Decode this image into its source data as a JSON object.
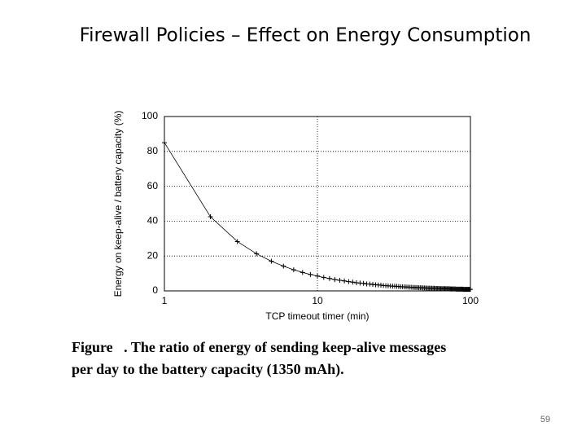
{
  "slide": {
    "title": "Firewall Policies – Effect on Energy Consumption",
    "caption": [
      "Figure   . The ratio of energy of sending keep-alive messages",
      "per day to the battery capacity (1350 mAh)."
    ],
    "page_number": "59"
  },
  "chart_data": {
    "type": "line",
    "x_label": "TCP timeout timer (min)",
    "y_label": "Energy on keep-alive / battery capacity (%)",
    "xscale": "log",
    "grid": true,
    "color": "#000000",
    "xlim": [
      1,
      100
    ],
    "xticks": [
      1,
      10,
      100
    ],
    "ylim": [
      0,
      100
    ],
    "yticks": [
      0,
      20,
      40,
      60,
      80,
      100
    ],
    "x": [
      1,
      2,
      3,
      4,
      5,
      6,
      7,
      8,
      9,
      10,
      11,
      12,
      13,
      14,
      15,
      16,
      17,
      18,
      19,
      20,
      21,
      22,
      23,
      24,
      25,
      26,
      27,
      28,
      29,
      30,
      31,
      32,
      33,
      34,
      35,
      36,
      37,
      38,
      39,
      40,
      41,
      42,
      43,
      44,
      45,
      46,
      47,
      48,
      49,
      50,
      51,
      52,
      53,
      54,
      55,
      56,
      57,
      58,
      59,
      60,
      61,
      62,
      63,
      64,
      65,
      66,
      67,
      68,
      69,
      70,
      71,
      72,
      73,
      74,
      75,
      76,
      77,
      78,
      79,
      80,
      81,
      82,
      83,
      84,
      85,
      86,
      87,
      88,
      89,
      90,
      91,
      92,
      93,
      94,
      95,
      96,
      97,
      98,
      99,
      100
    ],
    "values": [
      85,
      42.5,
      28.3,
      21.3,
      17,
      14.2,
      12.1,
      10.6,
      9.4,
      8.5,
      7.7,
      7.1,
      6.5,
      6.1,
      5.7,
      5.3,
      5,
      4.7,
      4.5,
      4.3,
      4,
      3.9,
      3.7,
      3.5,
      3.4,
      3.3,
      3.1,
      3,
      2.9,
      2.8,
      2.7,
      2.7,
      2.6,
      2.5,
      2.4,
      2.4,
      2.3,
      2.2,
      2.2,
      2.1,
      2.1,
      2,
      2,
      1.9,
      1.9,
      1.8,
      1.8,
      1.8,
      1.7,
      1.7,
      1.7,
      1.6,
      1.6,
      1.6,
      1.5,
      1.5,
      1.5,
      1.5,
      1.4,
      1.4,
      1.4,
      1.4,
      1.3,
      1.3,
      1.3,
      1.3,
      1.3,
      1.3,
      1.2,
      1.2,
      1.2,
      1.2,
      1.2,
      1.1,
      1.1,
      1.1,
      1.1,
      1.1,
      1.1,
      1.1,
      1,
      1,
      1,
      1,
      1,
      1,
      1,
      1,
      1,
      0.9,
      0.9,
      0.9,
      0.9,
      0.9,
      0.9,
      0.9,
      0.9,
      0.9,
      0.9,
      0.9
    ]
  }
}
